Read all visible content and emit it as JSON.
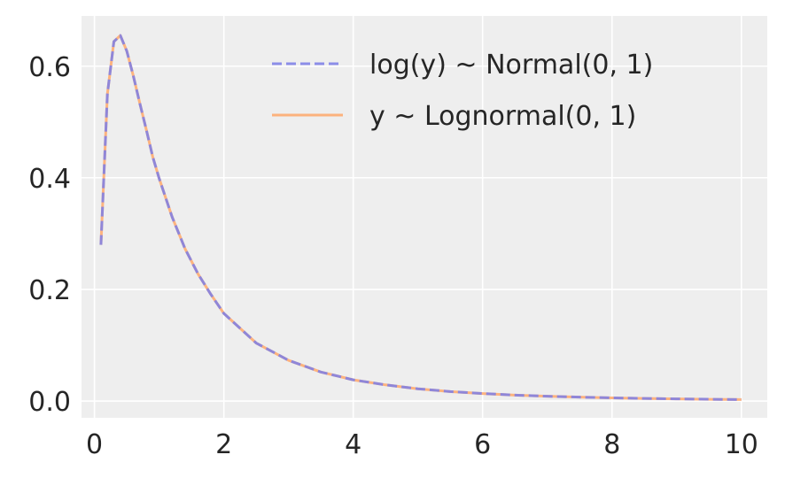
{
  "chart_data": {
    "type": "line",
    "title": "",
    "xlabel": "",
    "ylabel": "",
    "xlim": [
      -0.2,
      10.4
    ],
    "ylim": [
      -0.03,
      0.69
    ],
    "xticks": [
      0,
      2,
      4,
      6,
      8,
      10
    ],
    "xtick_labels": [
      "0",
      "2",
      "4",
      "6",
      "8",
      "10"
    ],
    "yticks": [
      0.0,
      0.2,
      0.4,
      0.6
    ],
    "ytick_labels": [
      "0.0",
      "0.2",
      "0.4",
      "0.6"
    ],
    "grid": true,
    "legend_position": "top-right",
    "background_color": "#eeeeee",
    "grid_color": "#ffffff",
    "series": [
      {
        "name": "log(y) ~ Normal(0, 1)",
        "color": "#7b7ee8",
        "linestyle": "dashed",
        "x": [
          0.1,
          0.2,
          0.3,
          0.4,
          0.5,
          0.6,
          0.7,
          0.8,
          0.9,
          1.0,
          1.2,
          1.4,
          1.6,
          1.8,
          2.0,
          2.5,
          3.0,
          3.5,
          4.0,
          4.5,
          5.0,
          5.5,
          6.0,
          6.5,
          7.0,
          7.5,
          8.0,
          8.5,
          9.0,
          9.5,
          10.0
        ],
        "y": [
          0.28,
          0.55,
          0.644,
          0.655,
          0.627,
          0.583,
          0.534,
          0.487,
          0.438,
          0.399,
          0.33,
          0.273,
          0.228,
          0.191,
          0.157,
          0.104,
          0.073,
          0.052,
          0.038,
          0.029,
          0.022,
          0.017,
          0.0135,
          0.0107,
          0.0086,
          0.007,
          0.0057,
          0.0047,
          0.0039,
          0.0032,
          0.0027
        ]
      },
      {
        "name": "y ~ Lognormal(0, 1)",
        "color": "#ffa86a",
        "linestyle": "solid",
        "x": [
          0.1,
          0.2,
          0.3,
          0.4,
          0.5,
          0.6,
          0.7,
          0.8,
          0.9,
          1.0,
          1.2,
          1.4,
          1.6,
          1.8,
          2.0,
          2.5,
          3.0,
          3.5,
          4.0,
          4.5,
          5.0,
          5.5,
          6.0,
          6.5,
          7.0,
          7.5,
          8.0,
          8.5,
          9.0,
          9.5,
          10.0
        ],
        "y": [
          0.28,
          0.55,
          0.644,
          0.655,
          0.627,
          0.583,
          0.534,
          0.487,
          0.438,
          0.399,
          0.33,
          0.273,
          0.228,
          0.191,
          0.157,
          0.104,
          0.073,
          0.052,
          0.038,
          0.029,
          0.022,
          0.017,
          0.0135,
          0.0107,
          0.0086,
          0.007,
          0.0057,
          0.0047,
          0.0039,
          0.0032,
          0.0027
        ]
      }
    ]
  }
}
